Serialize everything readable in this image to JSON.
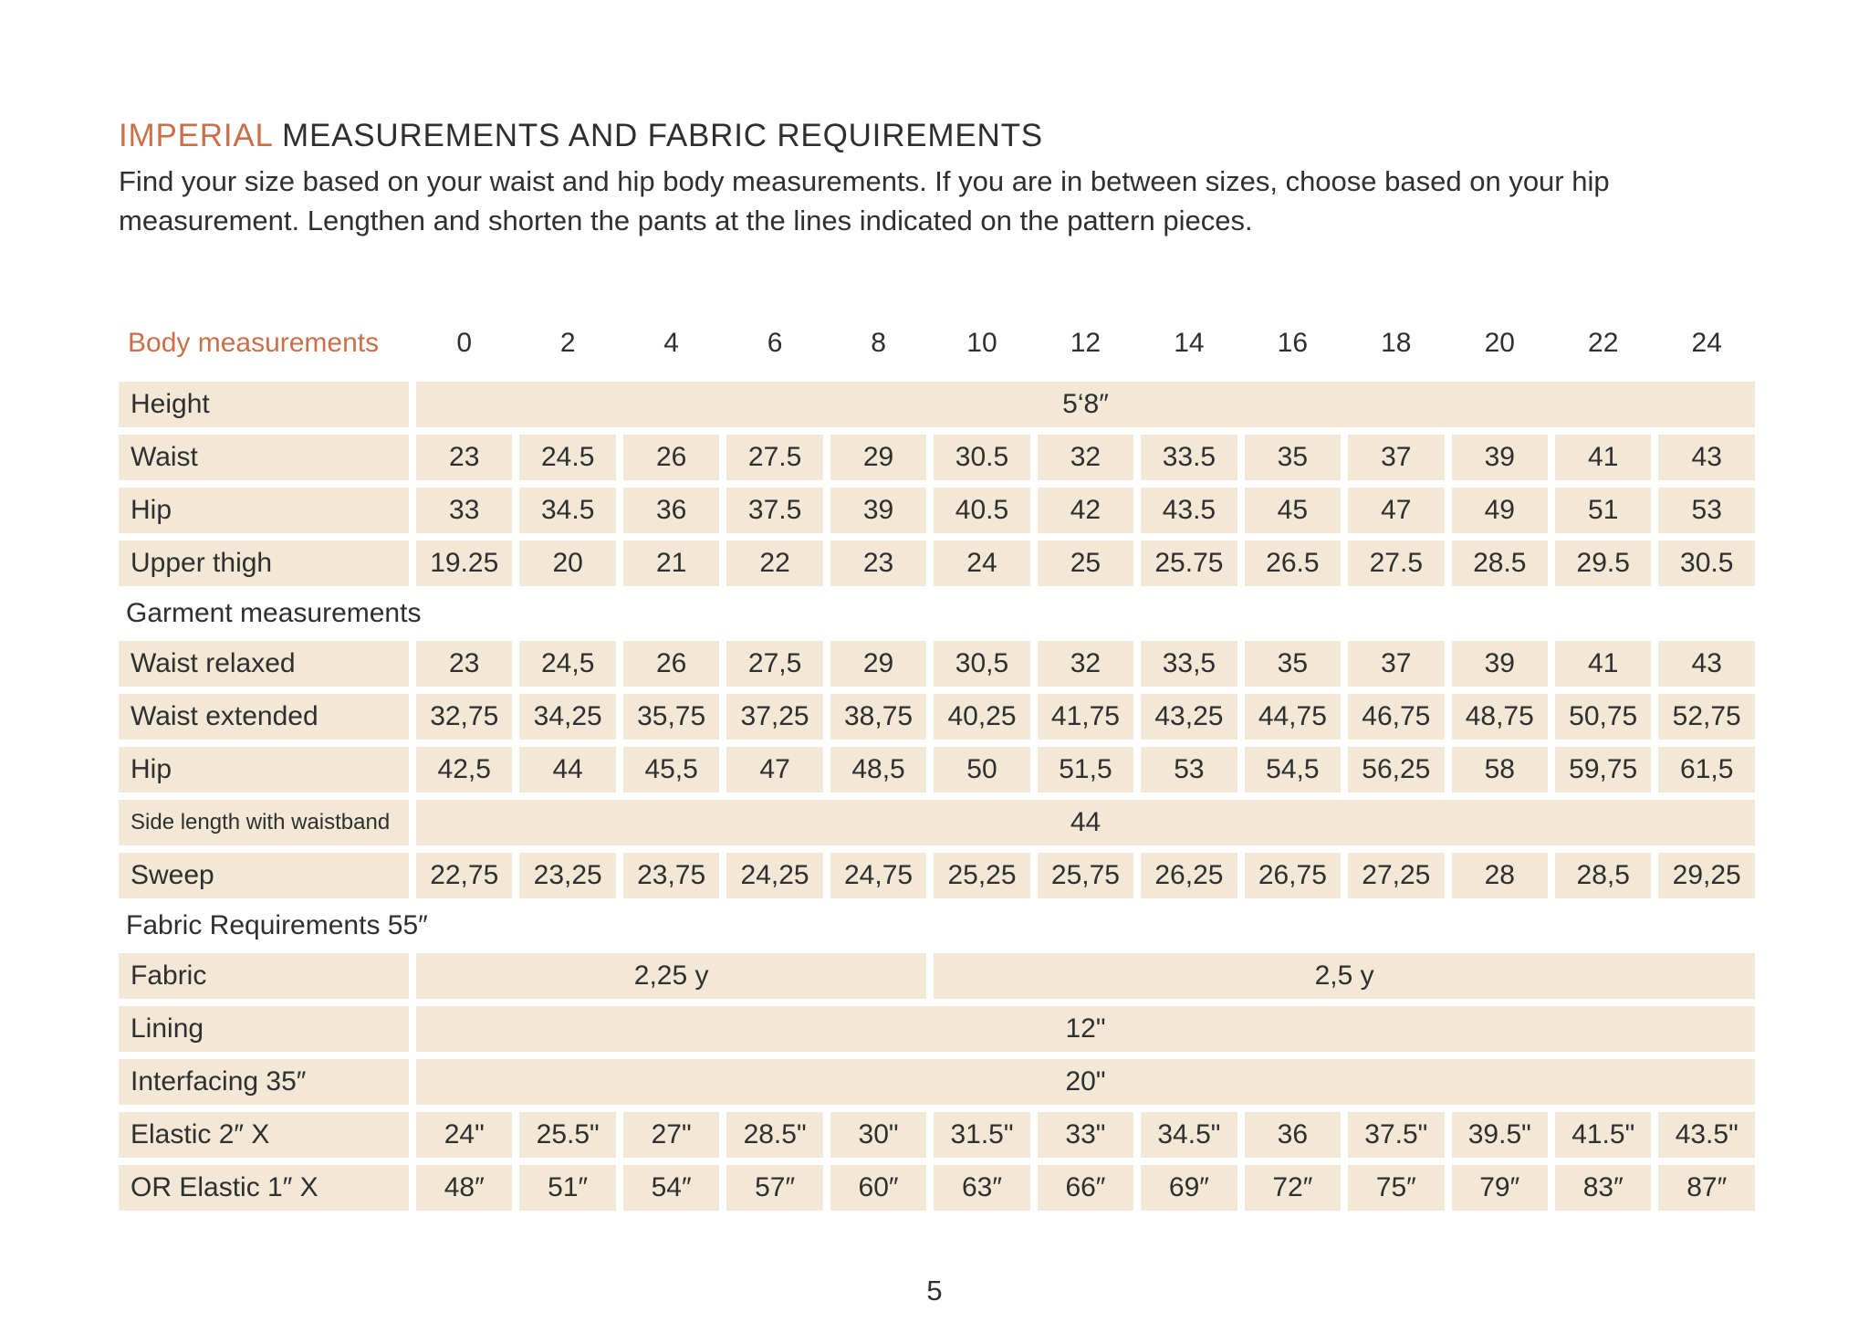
{
  "header": {
    "title_accent": "IMPERIAL",
    "title_rest": "MEASUREMENTS AND FABRIC REQUIREMENTS",
    "intro_line1": "Find your size based on your waist and hip body measurements. If you are in between sizes, choose based on your hip",
    "intro_line2": "measurement. Lengthen and shorten the pants at the lines indicated on the pattern pieces."
  },
  "colors": {
    "accent": "#cb6f4a",
    "cell_background": "#f2e8d5",
    "text": "#2f2f2f"
  },
  "table": {
    "header_label": "Body measurements",
    "sizes": [
      "0",
      "2",
      "4",
      "6",
      "8",
      "10",
      "12",
      "14",
      "16",
      "18",
      "20",
      "22",
      "24"
    ],
    "rows": [
      {
        "type": "data",
        "label": "Height",
        "merged": "5‘8″"
      },
      {
        "type": "data",
        "label": "Waist",
        "values": [
          "23",
          "24.5",
          "26",
          "27.5",
          "29",
          "30.5",
          "32",
          "33.5",
          "35",
          "37",
          "39",
          "41",
          "43"
        ]
      },
      {
        "type": "data",
        "label": "Hip",
        "values": [
          "33",
          "34.5",
          "36",
          "37.5",
          "39",
          "40.5",
          "42",
          "43.5",
          "45",
          "47",
          "49",
          "51",
          "53"
        ]
      },
      {
        "type": "data",
        "label": "Upper thigh",
        "values": [
          "19.25",
          "20",
          "21",
          "22",
          "23",
          "24",
          "25",
          "25.75",
          "26.5",
          "27.5",
          "28.5",
          "29.5",
          "30.5"
        ]
      },
      {
        "type": "section",
        "label": "Garment measurements"
      },
      {
        "type": "data",
        "label": "Waist relaxed",
        "values": [
          "23",
          "24,5",
          "26",
          "27,5",
          "29",
          "30,5",
          "32",
          "33,5",
          "35",
          "37",
          "39",
          "41",
          "43"
        ]
      },
      {
        "type": "data",
        "label": "Waist extended",
        "values": [
          "32,75",
          "34,25",
          "35,75",
          "37,25",
          "38,75",
          "40,25",
          "41,75",
          "43,25",
          "44,75",
          "46,75",
          "48,75",
          "50,75",
          "52,75"
        ]
      },
      {
        "type": "data",
        "label": "Hip",
        "values": [
          "42,5",
          "44",
          "45,5",
          "47",
          "48,5",
          "50",
          "51,5",
          "53",
          "54,5",
          "56,25",
          "58",
          "59,75",
          "61,5"
        ]
      },
      {
        "type": "data",
        "label": "Side length with waistband",
        "merged": "44"
      },
      {
        "type": "data",
        "label": "Sweep",
        "values": [
          "22,75",
          "23,25",
          "23,75",
          "24,25",
          "24,75",
          "25,25",
          "25,75",
          "26,25",
          "26,75",
          "27,25",
          "28",
          "28,5",
          "29,25"
        ]
      },
      {
        "type": "section",
        "label": "Fabric Requirements 55″"
      },
      {
        "type": "data",
        "label": "Fabric",
        "spans": [
          {
            "value": "2,25 y",
            "cols": 5
          },
          {
            "value": "2,5 y",
            "cols": 8
          }
        ]
      },
      {
        "type": "data",
        "label": "Lining",
        "merged": "12\""
      },
      {
        "type": "data",
        "label": "Interfacing 35″",
        "merged": "20\""
      },
      {
        "type": "data",
        "label": "Elastic 2″ X",
        "values": [
          "24\"",
          "25.5\"",
          "27\"",
          "28.5\"",
          "30\"",
          "31.5\"",
          "33\"",
          "34.5\"",
          "36",
          "37.5\"",
          "39.5\"",
          "41.5\"",
          "43.5\""
        ]
      },
      {
        "type": "data",
        "label": "OR Elastic 1″  X",
        "values": [
          "48″",
          "51″",
          "54″",
          "57″",
          "60″",
          "63″",
          "66″",
          "69″",
          "72″",
          "75″",
          "79″",
          "83″",
          "87″"
        ]
      }
    ]
  },
  "footer": {
    "page_number": "5"
  }
}
